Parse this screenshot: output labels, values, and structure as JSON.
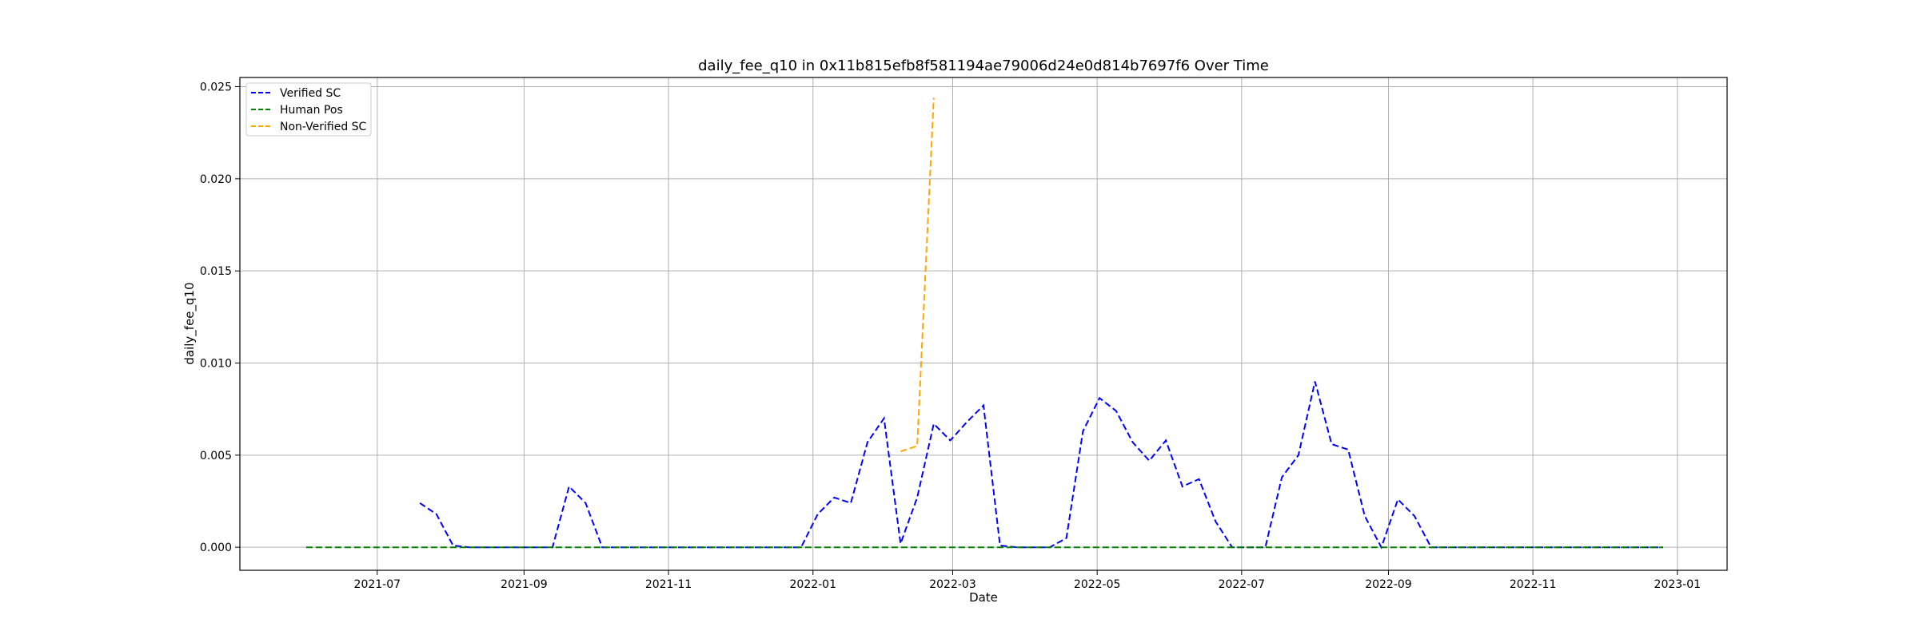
{
  "chart_data": {
    "type": "line",
    "title": "daily_fee_q10 in 0x11b815efb8f581194ae79006d24e0d814b7697f6 Over Time",
    "xlabel": "Date",
    "ylabel": "daily_fee_q10",
    "x_type": "date",
    "xlim": [
      "2021-05-04",
      "2023-01-22"
    ],
    "ylim": [
      -0.00125,
      0.0255
    ],
    "x_ticks": [
      "2021-07-01",
      "2021-09-01",
      "2021-11-01",
      "2022-01-01",
      "2022-03-01",
      "2022-05-01",
      "2022-07-01",
      "2022-09-01",
      "2022-11-01",
      "2023-01-01"
    ],
    "x_tick_labels": [
      "2021-07",
      "2021-09",
      "2021-11",
      "2022-01",
      "2022-03",
      "2022-05",
      "2022-07",
      "2022-09",
      "2022-11",
      "2023-01"
    ],
    "y_ticks": [
      0,
      0.005,
      0.01,
      0.015,
      0.02,
      0.025
    ],
    "y_tick_labels": [
      "0.000",
      "0.005",
      "0.010",
      "0.015",
      "0.020",
      "0.025"
    ],
    "grid": true,
    "legend_position": "top-left",
    "series": [
      {
        "name": "Verified SC",
        "color": "#0000ff",
        "dash": "dashed",
        "points": [
          [
            "2021-07-19",
            0.0024
          ],
          [
            "2021-07-26",
            0.0018
          ],
          [
            "2021-08-02",
            0.0001
          ],
          [
            "2021-08-09",
            0.0
          ],
          [
            "2021-08-16",
            0.0
          ],
          [
            "2021-08-23",
            0.0
          ],
          [
            "2021-08-30",
            0.0
          ],
          [
            "2021-09-06",
            0.0
          ],
          [
            "2021-09-13",
            0.0
          ],
          [
            "2021-09-20",
            0.0033
          ],
          [
            "2021-09-27",
            0.0024
          ],
          [
            "2021-10-04",
            0.0
          ],
          [
            "2021-10-11",
            0.0
          ],
          [
            "2021-10-18",
            0.0
          ],
          [
            "2021-10-25",
            0.0
          ],
          [
            "2021-11-01",
            0.0
          ],
          [
            "2021-11-08",
            0.0
          ],
          [
            "2021-11-15",
            0.0
          ],
          [
            "2021-11-22",
            0.0
          ],
          [
            "2021-11-29",
            0.0
          ],
          [
            "2021-12-06",
            0.0
          ],
          [
            "2021-12-13",
            0.0
          ],
          [
            "2021-12-20",
            0.0
          ],
          [
            "2021-12-27",
            0.0
          ],
          [
            "2022-01-03",
            0.0018
          ],
          [
            "2022-01-10",
            0.0027
          ],
          [
            "2022-01-17",
            0.0024
          ],
          [
            "2022-01-24",
            0.0057
          ],
          [
            "2022-01-31",
            0.007
          ],
          [
            "2022-02-07",
            0.0002
          ],
          [
            "2022-02-14",
            0.0027
          ],
          [
            "2022-02-21",
            0.0067
          ],
          [
            "2022-02-28",
            0.0058
          ],
          [
            "2022-03-07",
            0.0068
          ],
          [
            "2022-03-14",
            0.0077
          ],
          [
            "2022-03-21",
            0.0001
          ],
          [
            "2022-03-28",
            0.0
          ],
          [
            "2022-04-04",
            0.0
          ],
          [
            "2022-04-11",
            0.0
          ],
          [
            "2022-04-18",
            0.0005
          ],
          [
            "2022-04-25",
            0.0063
          ],
          [
            "2022-05-02",
            0.0081
          ],
          [
            "2022-05-09",
            0.0074
          ],
          [
            "2022-05-16",
            0.0057
          ],
          [
            "2022-05-23",
            0.0047
          ],
          [
            "2022-05-30",
            0.0058
          ],
          [
            "2022-06-06",
            0.0033
          ],
          [
            "2022-06-13",
            0.0037
          ],
          [
            "2022-06-20",
            0.0014
          ],
          [
            "2022-06-27",
            0.0
          ],
          [
            "2022-07-04",
            0.0
          ],
          [
            "2022-07-11",
            0.0
          ],
          [
            "2022-07-18",
            0.0038
          ],
          [
            "2022-07-25",
            0.005
          ],
          [
            "2022-08-01",
            0.009
          ],
          [
            "2022-08-08",
            0.0056
          ],
          [
            "2022-08-15",
            0.0053
          ],
          [
            "2022-08-22",
            0.0017
          ],
          [
            "2022-08-29",
            0.0
          ],
          [
            "2022-09-05",
            0.0026
          ],
          [
            "2022-09-12",
            0.0017
          ],
          [
            "2022-09-19",
            0.0
          ],
          [
            "2022-09-26",
            0.0
          ],
          [
            "2022-10-03",
            0.0
          ],
          [
            "2022-10-10",
            0.0
          ],
          [
            "2022-10-17",
            0.0
          ],
          [
            "2022-10-24",
            0.0
          ],
          [
            "2022-10-31",
            0.0
          ],
          [
            "2022-11-07",
            0.0
          ],
          [
            "2022-11-14",
            0.0
          ],
          [
            "2022-11-21",
            0.0
          ],
          [
            "2022-11-28",
            0.0
          ],
          [
            "2022-12-05",
            0.0
          ],
          [
            "2022-12-12",
            0.0
          ],
          [
            "2022-12-19",
            0.0
          ],
          [
            "2022-12-26",
            0.0
          ]
        ]
      },
      {
        "name": "Human Pos",
        "color": "#008000",
        "dash": "dashed",
        "points": [
          [
            "2021-06-01",
            0.0
          ],
          [
            "2022-12-26",
            0.0
          ]
        ]
      },
      {
        "name": "Non-Verified SC",
        "color": "#ffa500",
        "dash": "dashed",
        "points": [
          [
            "2022-02-07",
            0.0052
          ],
          [
            "2022-02-14",
            0.0055
          ],
          [
            "2022-02-21",
            0.0244
          ]
        ]
      }
    ]
  }
}
